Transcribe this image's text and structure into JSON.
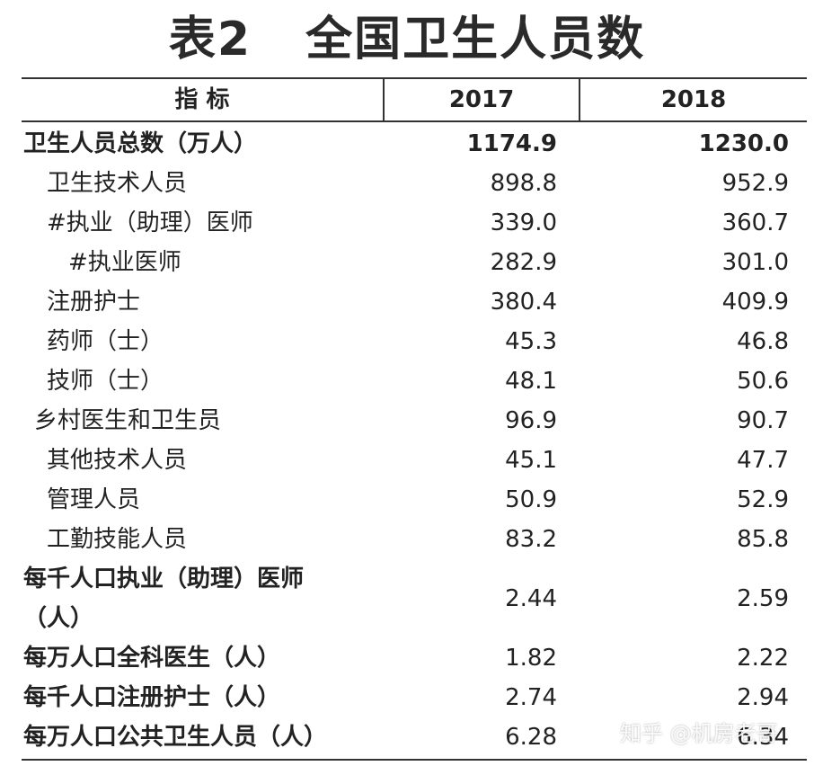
{
  "title": {
    "label": "表2",
    "text": "全国卫生人员数"
  },
  "header": {
    "indicator": "指 标",
    "col2017": "2017",
    "col2018": "2018"
  },
  "rows": [
    {
      "label": "卫生人员总数（万人）",
      "v2017": "1174.9",
      "v2018": "1230.0"
    },
    {
      "label": "卫生技术人员",
      "v2017": "898.8",
      "v2018": "952.9"
    },
    {
      "label": "#执业（助理）医师",
      "v2017": "339.0",
      "v2018": "360.7"
    },
    {
      "label": "#执业医师",
      "v2017": "282.9",
      "v2018": "301.0"
    },
    {
      "label": "注册护士",
      "v2017": "380.4",
      "v2018": "409.9"
    },
    {
      "label": "药师（士）",
      "v2017": "45.3",
      "v2018": "46.8"
    },
    {
      "label": "技师（士）",
      "v2017": "48.1",
      "v2018": "50.6"
    },
    {
      "label": "乡村医生和卫生员",
      "v2017": "96.9",
      "v2018": "90.7"
    },
    {
      "label": "其他技术人员",
      "v2017": "45.1",
      "v2018": "47.7"
    },
    {
      "label": "管理人员",
      "v2017": "50.9",
      "v2018": "52.9"
    },
    {
      "label": "工勤技能人员",
      "v2017": "83.2",
      "v2018": "85.8"
    },
    {
      "label_line1": "每千人口执业（助理）医师",
      "label_line2": "（人）",
      "v2017": "2.44",
      "v2018": "2.59"
    },
    {
      "label": "每万人口全科医生（人）",
      "v2017": "1.82",
      "v2018": "2.22"
    },
    {
      "label": "每千人口注册护士（人）",
      "v2017": "2.74",
      "v2018": "2.94"
    },
    {
      "label": "每万人口公共卫生人员（人）",
      "v2017": "6.28",
      "v2018": "6.34"
    }
  ],
  "watermark": "知乎 @机房老哥"
}
